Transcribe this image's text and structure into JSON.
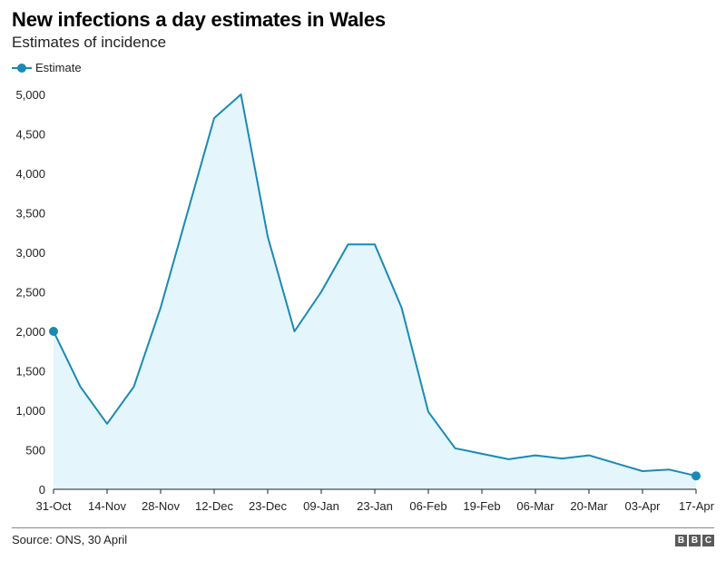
{
  "header": {
    "title": "New infections a day estimates in Wales",
    "subtitle": "Estimates of incidence"
  },
  "legend": {
    "label": "Estimate"
  },
  "footer": {
    "source": "Source: ONS, 30 April",
    "logo_letters": [
      "B",
      "B",
      "C"
    ]
  },
  "colors": {
    "line": "#1a8ab4",
    "fill": "#e4f5fb",
    "axis": "#222222"
  },
  "chart_data": {
    "type": "area",
    "title": "New infections a day estimates in Wales",
    "subtitle": "Estimates of incidence",
    "x_tick_labels": [
      "31-Oct",
      "14-Nov",
      "28-Nov",
      "12-Dec",
      "23-Dec",
      "09-Jan",
      "23-Jan",
      "06-Feb",
      "19-Feb",
      "06-Mar",
      "20-Mar",
      "03-Apr",
      "17-Apr"
    ],
    "ylim": [
      0,
      5000
    ],
    "y_ticks": [
      0,
      500,
      1000,
      1500,
      2000,
      2500,
      3000,
      3500,
      4000,
      4500,
      5000
    ],
    "y_tick_labels": [
      "0",
      "500",
      "1,000",
      "1,500",
      "2,000",
      "2,500",
      "3,000",
      "3,500",
      "4,000",
      "4,500",
      "5,000"
    ],
    "grid": false,
    "legend_position": "top-left",
    "series": [
      {
        "name": "Estimate",
        "values": [
          2000,
          1300,
          830,
          1300,
          2300,
          3500,
          4700,
          5000,
          3200,
          2000,
          2500,
          3100,
          3100,
          2300,
          980,
          520,
          450,
          380,
          430,
          390,
          430,
          330,
          230,
          250,
          170
        ]
      }
    ]
  }
}
